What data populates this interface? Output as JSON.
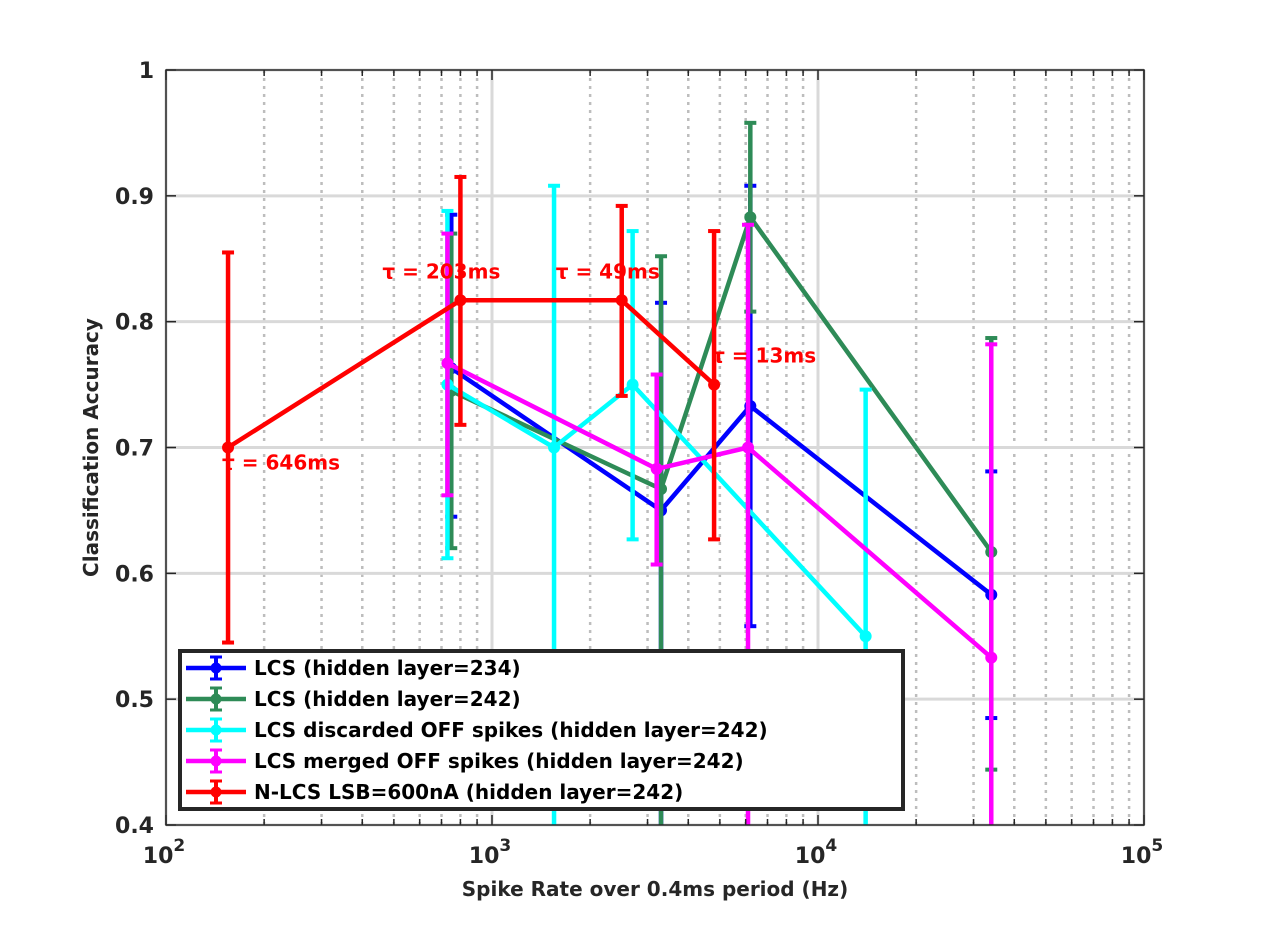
{
  "chart_data": {
    "type": "line",
    "xlabel": "Spike Rate over 0.4ms period (Hz)",
    "ylabel": "Classification Accuracy",
    "xscale": "log",
    "xlim": [
      100,
      100000
    ],
    "ylim": [
      0.4,
      1.0
    ],
    "grid": true,
    "minor_grid": true,
    "x_ticks": [
      {
        "value": 100,
        "base": "10",
        "exp": "2"
      },
      {
        "value": 1000,
        "base": "10",
        "exp": "3"
      },
      {
        "value": 10000,
        "base": "10",
        "exp": "4"
      },
      {
        "value": 100000,
        "base": "10",
        "exp": "5"
      }
    ],
    "y_ticks": [
      {
        "value": 0.4,
        "label": "0.4"
      },
      {
        "value": 0.5,
        "label": "0.5"
      },
      {
        "value": 0.6,
        "label": "0.6"
      },
      {
        "value": 0.7,
        "label": "0.7"
      },
      {
        "value": 0.8,
        "label": "0.8"
      },
      {
        "value": 0.9,
        "label": "0.9"
      },
      {
        "value": 1.0,
        "label": "1"
      }
    ],
    "legend_position": "bottom-left",
    "series": [
      {
        "name": "LCS (hidden layer=234)",
        "color": "#0000ff",
        "points": [
          {
            "x": 750,
            "y": 0.763,
            "lo": 0.645,
            "hi": 0.885
          },
          {
            "x": 3300,
            "y": 0.65,
            "lo": 0.4,
            "hi": 0.815
          },
          {
            "x": 6200,
            "y": 0.733,
            "lo": 0.558,
            "hi": 0.908
          },
          {
            "x": 34000,
            "y": 0.583,
            "lo": 0.485,
            "hi": 0.681
          }
        ]
      },
      {
        "name": "LCS (hidden layer=242)",
        "color": "#2e8b57",
        "points": [
          {
            "x": 750,
            "y": 0.745,
            "lo": 0.62,
            "hi": 0.87
          },
          {
            "x": 3300,
            "y": 0.667,
            "lo": 0.4,
            "hi": 0.852
          },
          {
            "x": 6200,
            "y": 0.883,
            "lo": 0.808,
            "hi": 0.958
          },
          {
            "x": 34000,
            "y": 0.617,
            "lo": 0.444,
            "hi": 0.787
          }
        ]
      },
      {
        "name": "LCS discarded OFF spikes (hidden layer=242)",
        "color": "#00ffff",
        "points": [
          {
            "x": 730,
            "y": 0.75,
            "lo": 0.612,
            "hi": 0.888
          },
          {
            "x": 1550,
            "y": 0.7,
            "lo": 0.4,
            "hi": 0.908
          },
          {
            "x": 2700,
            "y": 0.75,
            "lo": 0.627,
            "hi": 0.872
          },
          {
            "x": 14000,
            "y": 0.55,
            "lo": 0.4,
            "hi": 0.746
          }
        ]
      },
      {
        "name": "LCS merged OFF spikes (hidden layer=242)",
        "color": "#ff00ff",
        "points": [
          {
            "x": 730,
            "y": 0.767,
            "lo": 0.662,
            "hi": 0.87
          },
          {
            "x": 3200,
            "y": 0.683,
            "lo": 0.607,
            "hi": 0.758
          },
          {
            "x": 6100,
            "y": 0.7,
            "lo": 0.4,
            "hi": 0.877
          },
          {
            "x": 34000,
            "y": 0.533,
            "lo": 0.4,
            "hi": 0.782
          }
        ]
      },
      {
        "name": "N-LCS LSB=600nA (hidden layer=242)",
        "color": "#ff0000",
        "points": [
          {
            "x": 155,
            "y": 0.7,
            "lo": 0.545,
            "hi": 0.855
          },
          {
            "x": 800,
            "y": 0.817,
            "lo": 0.718,
            "hi": 0.915
          },
          {
            "x": 2500,
            "y": 0.817,
            "lo": 0.741,
            "hi": 0.892
          },
          {
            "x": 4800,
            "y": 0.75,
            "lo": 0.627,
            "hi": 0.872
          }
        ]
      }
    ],
    "annotations": [
      {
        "text": "τ = 646ms",
        "x": 155,
        "y": 0.7,
        "color": "#ff0000"
      },
      {
        "text": "τ = 203ms",
        "x": 800,
        "y": 0.817,
        "color": "#ff0000"
      },
      {
        "text": "τ = 49ms",
        "x": 2500,
        "y": 0.817,
        "color": "#ff0000"
      },
      {
        "text": "τ = 13ms",
        "x": 4800,
        "y": 0.75,
        "color": "#ff0000"
      }
    ]
  }
}
